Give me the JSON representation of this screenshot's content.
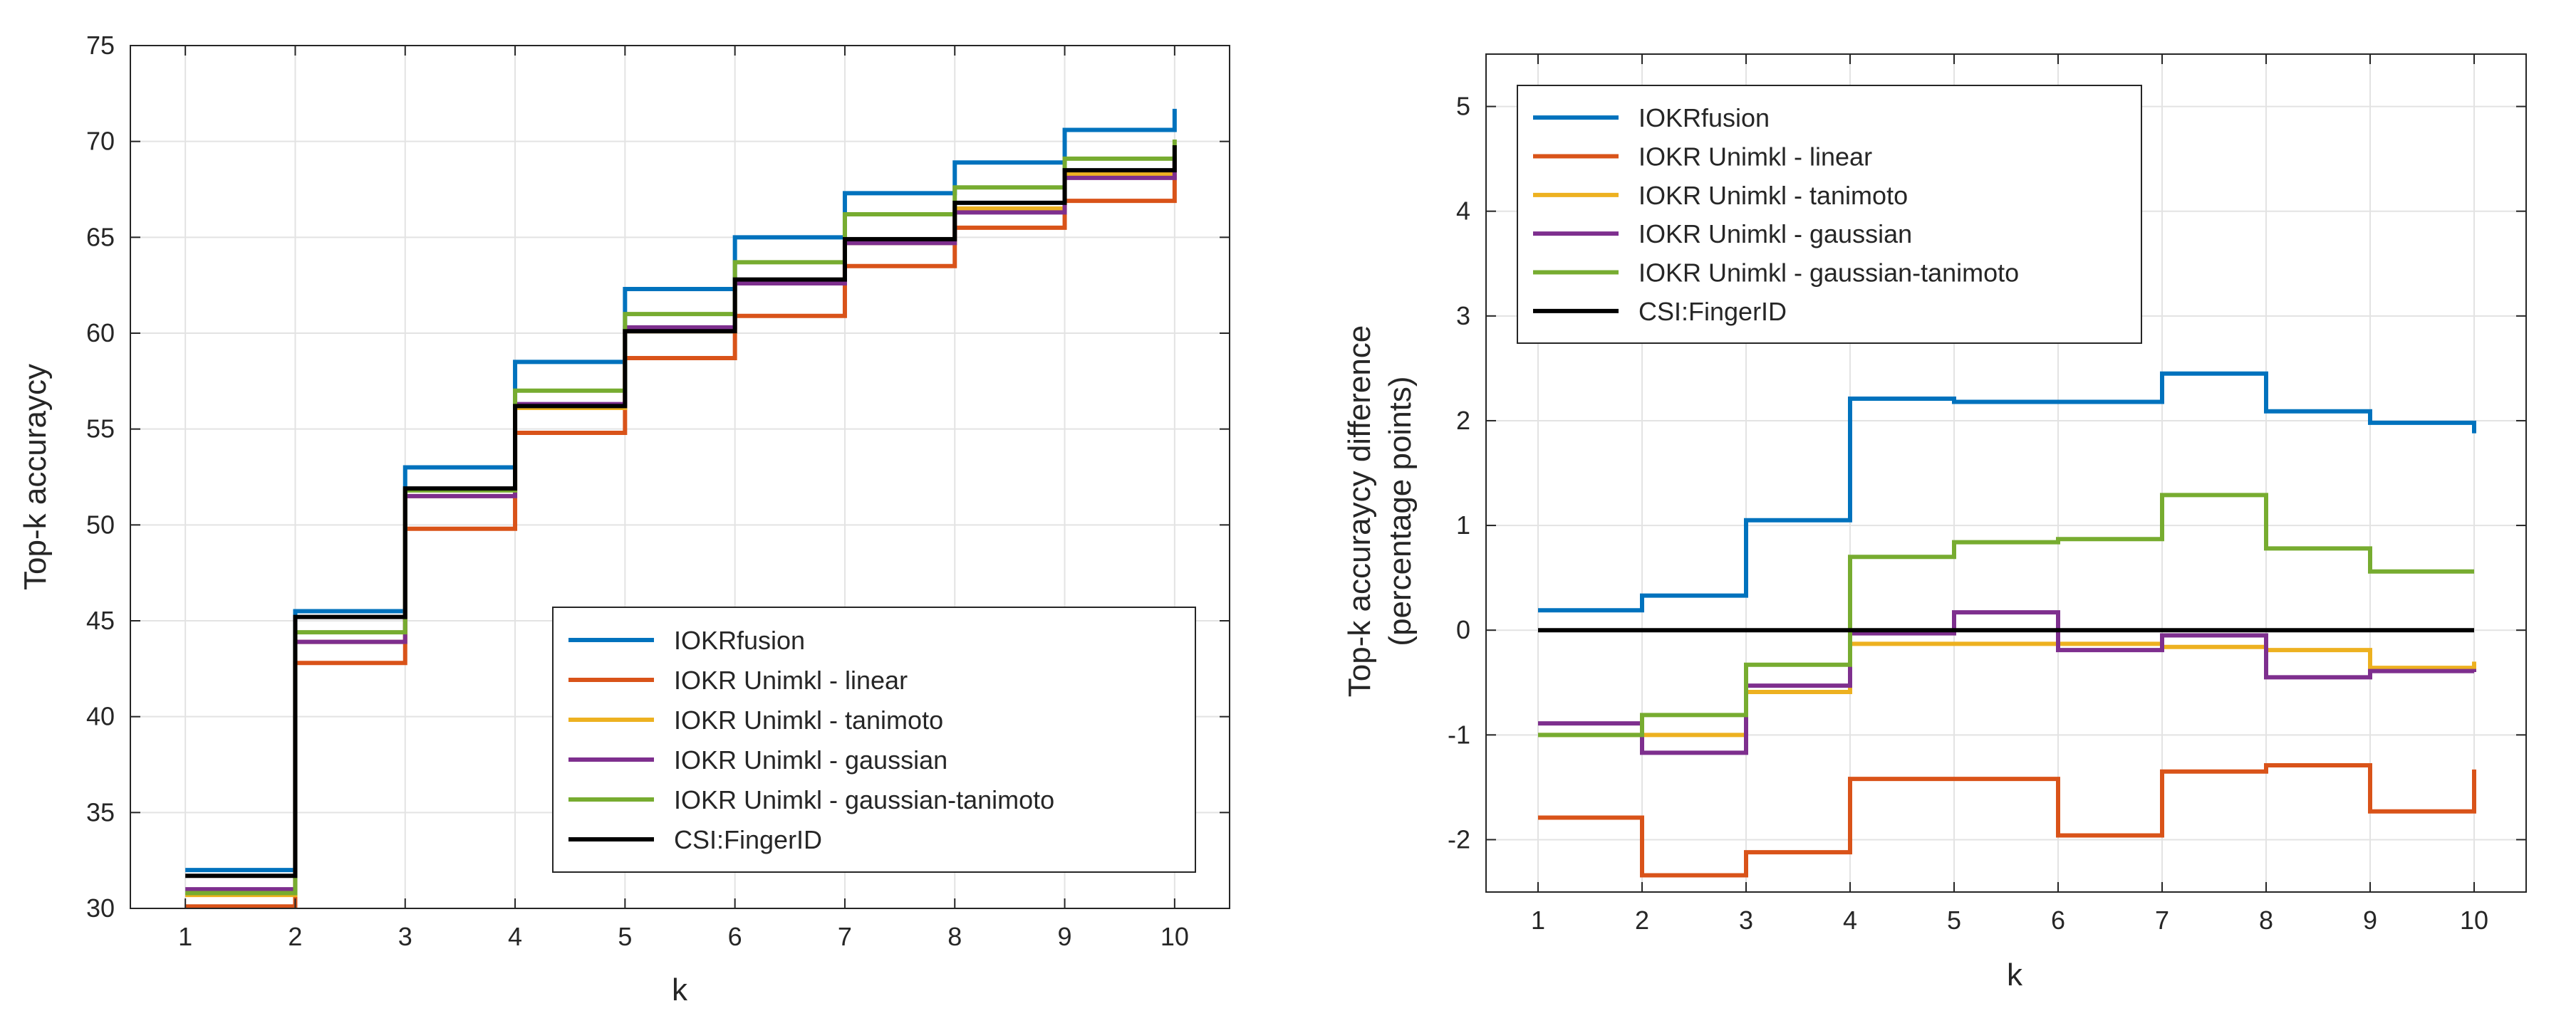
{
  "chart_data": [
    {
      "type": "line",
      "style": "stairs",
      "title": "",
      "xlabel": "k",
      "ylabel": "Top-k accuraycy",
      "xlim": [
        0.5,
        10.5
      ],
      "ylim": [
        30,
        75
      ],
      "xticks": [
        1,
        2,
        3,
        4,
        5,
        6,
        7,
        8,
        9,
        10
      ],
      "yticks": [
        30,
        35,
        40,
        45,
        50,
        55,
        60,
        65,
        70,
        75
      ],
      "grid": true,
      "legend_position": "bottom-right",
      "x": [
        1,
        2,
        3,
        4,
        5,
        6,
        7,
        8,
        9,
        10
      ],
      "series": [
        {
          "name": "IOKRfusion",
          "color": "#0072BD",
          "values": [
            32.0,
            45.5,
            53.0,
            58.5,
            62.3,
            65.0,
            67.3,
            68.9,
            70.6,
            71.7
          ]
        },
        {
          "name": "IOKR Unimkl - linear",
          "color": "#D95319",
          "values": [
            30.1,
            42.8,
            49.8,
            54.8,
            58.7,
            60.9,
            63.5,
            65.5,
            66.9,
            68.3
          ]
        },
        {
          "name": "IOKR Unimkl - tanimoto",
          "color": "#EDB120",
          "values": [
            30.7,
            43.9,
            51.5,
            56.1,
            60.1,
            62.6,
            64.7,
            66.5,
            68.3,
            69.3
          ]
        },
        {
          "name": "IOKR Unimkl - gaussian",
          "color": "#7E2F8E",
          "values": [
            31.0,
            43.9,
            51.5,
            56.3,
            60.3,
            62.6,
            64.7,
            66.3,
            68.1,
            69.2
          ]
        },
        {
          "name": "IOKR Unimkl - gaussian-tanimoto",
          "color": "#77AC30",
          "values": [
            30.8,
            44.4,
            51.8,
            57.0,
            61.0,
            63.7,
            66.2,
            67.6,
            69.1,
            70.1
          ]
        },
        {
          "name": "CSI:FingerID",
          "color": "#000000",
          "values": [
            31.7,
            45.2,
            51.9,
            56.2,
            60.1,
            62.8,
            64.9,
            66.8,
            68.5,
            69.8
          ]
        }
      ]
    },
    {
      "type": "line",
      "style": "stairs",
      "title": "",
      "xlabel": "k",
      "ylabel": "Top-k accuraycy difference",
      "ylabel_line2": "(percentage points)",
      "xlim": [
        0.5,
        10.5
      ],
      "ylim": [
        -2.5,
        5.5
      ],
      "xticks": [
        1,
        2,
        3,
        4,
        5,
        6,
        7,
        8,
        9,
        10
      ],
      "yticks": [
        -2,
        -1,
        0,
        1,
        2,
        3,
        4,
        5
      ],
      "grid": true,
      "legend_position": "top-left",
      "x": [
        1,
        2,
        3,
        4,
        5,
        6,
        7,
        8,
        9,
        10
      ],
      "series": [
        {
          "name": "IOKRfusion",
          "color": "#0072BD",
          "values": [
            0.19,
            0.33,
            1.05,
            2.21,
            2.18,
            2.18,
            2.45,
            2.09,
            1.98,
            1.88
          ]
        },
        {
          "name": "IOKR Unimkl - linear",
          "color": "#D95319",
          "values": [
            -1.79,
            -2.34,
            -2.12,
            -1.42,
            -1.42,
            -1.96,
            -1.35,
            -1.29,
            -1.73,
            -1.33
          ]
        },
        {
          "name": "IOKR Unimkl - tanimoto",
          "color": "#EDB120",
          "values": [
            -1.0,
            -1.0,
            -0.59,
            -0.13,
            -0.13,
            -0.13,
            -0.16,
            -0.19,
            -0.36,
            -0.3
          ]
        },
        {
          "name": "IOKR Unimkl - gaussian",
          "color": "#7E2F8E",
          "values": [
            -0.89,
            -1.17,
            -0.53,
            -0.03,
            0.17,
            -0.19,
            -0.05,
            -0.45,
            -0.39,
            -0.4
          ]
        },
        {
          "name": "IOKR Unimkl - gaussian-tanimoto",
          "color": "#77AC30",
          "values": [
            -1.0,
            -0.81,
            -0.33,
            0.7,
            0.84,
            0.87,
            1.29,
            0.78,
            0.56,
            0.56
          ]
        },
        {
          "name": "CSI:FingerID",
          "color": "#000000",
          "values": [
            0,
            0,
            0,
            0,
            0,
            0,
            0,
            0,
            0,
            0
          ]
        }
      ]
    }
  ]
}
